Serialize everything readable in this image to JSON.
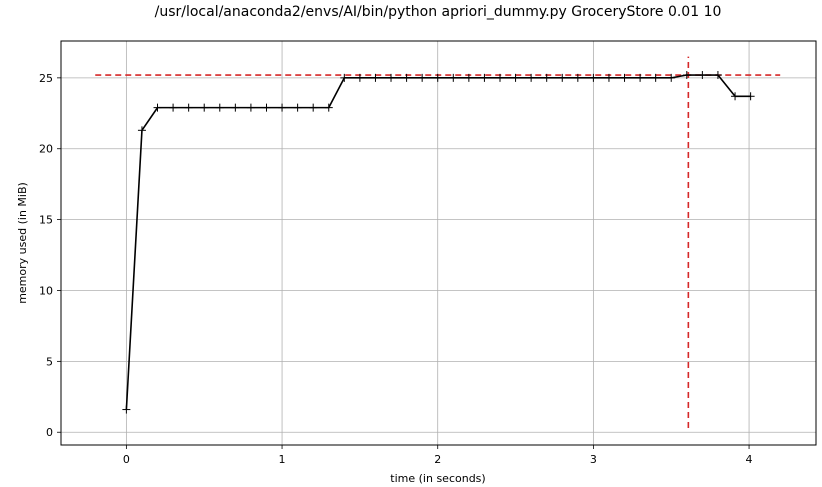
{
  "chart_data": {
    "type": "line",
    "title": "/usr/local/anaconda2/envs/AI/bin/python apriori_dummy.py GroceryStore 0.01 10",
    "xlabel": "time (in seconds)",
    "ylabel": "memory used (in MiB)",
    "xlim": [
      -0.42,
      4.43
    ],
    "ylim": [
      -0.9,
      27.6
    ],
    "xticks": [
      0,
      1,
      2,
      3,
      4
    ],
    "yticks": [
      0,
      5,
      10,
      15,
      20,
      25
    ],
    "grid": true,
    "series": [
      {
        "color": "#000000",
        "marker": "+",
        "x": [
          0.0,
          0.1,
          0.2,
          0.3,
          0.4,
          0.5,
          0.6,
          0.7,
          0.8,
          0.9,
          1.0,
          1.1,
          1.2,
          1.3,
          1.4,
          1.5,
          1.6,
          1.7,
          1.8,
          1.9,
          2.0,
          2.1,
          2.2,
          2.3,
          2.4,
          2.5,
          2.6,
          2.7,
          2.8,
          2.9,
          3.0,
          3.1,
          3.2,
          3.3,
          3.4,
          3.5,
          3.6,
          3.7,
          3.8,
          3.91,
          4.01
        ],
        "y": [
          1.6,
          21.3,
          22.9,
          22.9,
          22.9,
          22.9,
          22.9,
          22.9,
          22.9,
          22.9,
          22.9,
          22.9,
          22.9,
          22.9,
          25.0,
          25.0,
          25.0,
          25.0,
          25.0,
          25.0,
          25.0,
          25.0,
          25.0,
          25.0,
          25.0,
          25.0,
          25.0,
          25.0,
          25.0,
          25.0,
          25.0,
          25.0,
          25.0,
          25.0,
          25.0,
          25.0,
          25.2,
          25.2,
          25.2,
          23.7,
          23.7
        ]
      }
    ],
    "reference_lines": [
      {
        "orientation": "horizontal",
        "value": 25.2,
        "from": -0.2,
        "to": 4.2,
        "color": "#d62728",
        "style": "dashed"
      },
      {
        "orientation": "vertical",
        "value": 3.61,
        "from": 0.3,
        "to": 26.5,
        "color": "#d62728",
        "style": "dashed"
      }
    ]
  }
}
